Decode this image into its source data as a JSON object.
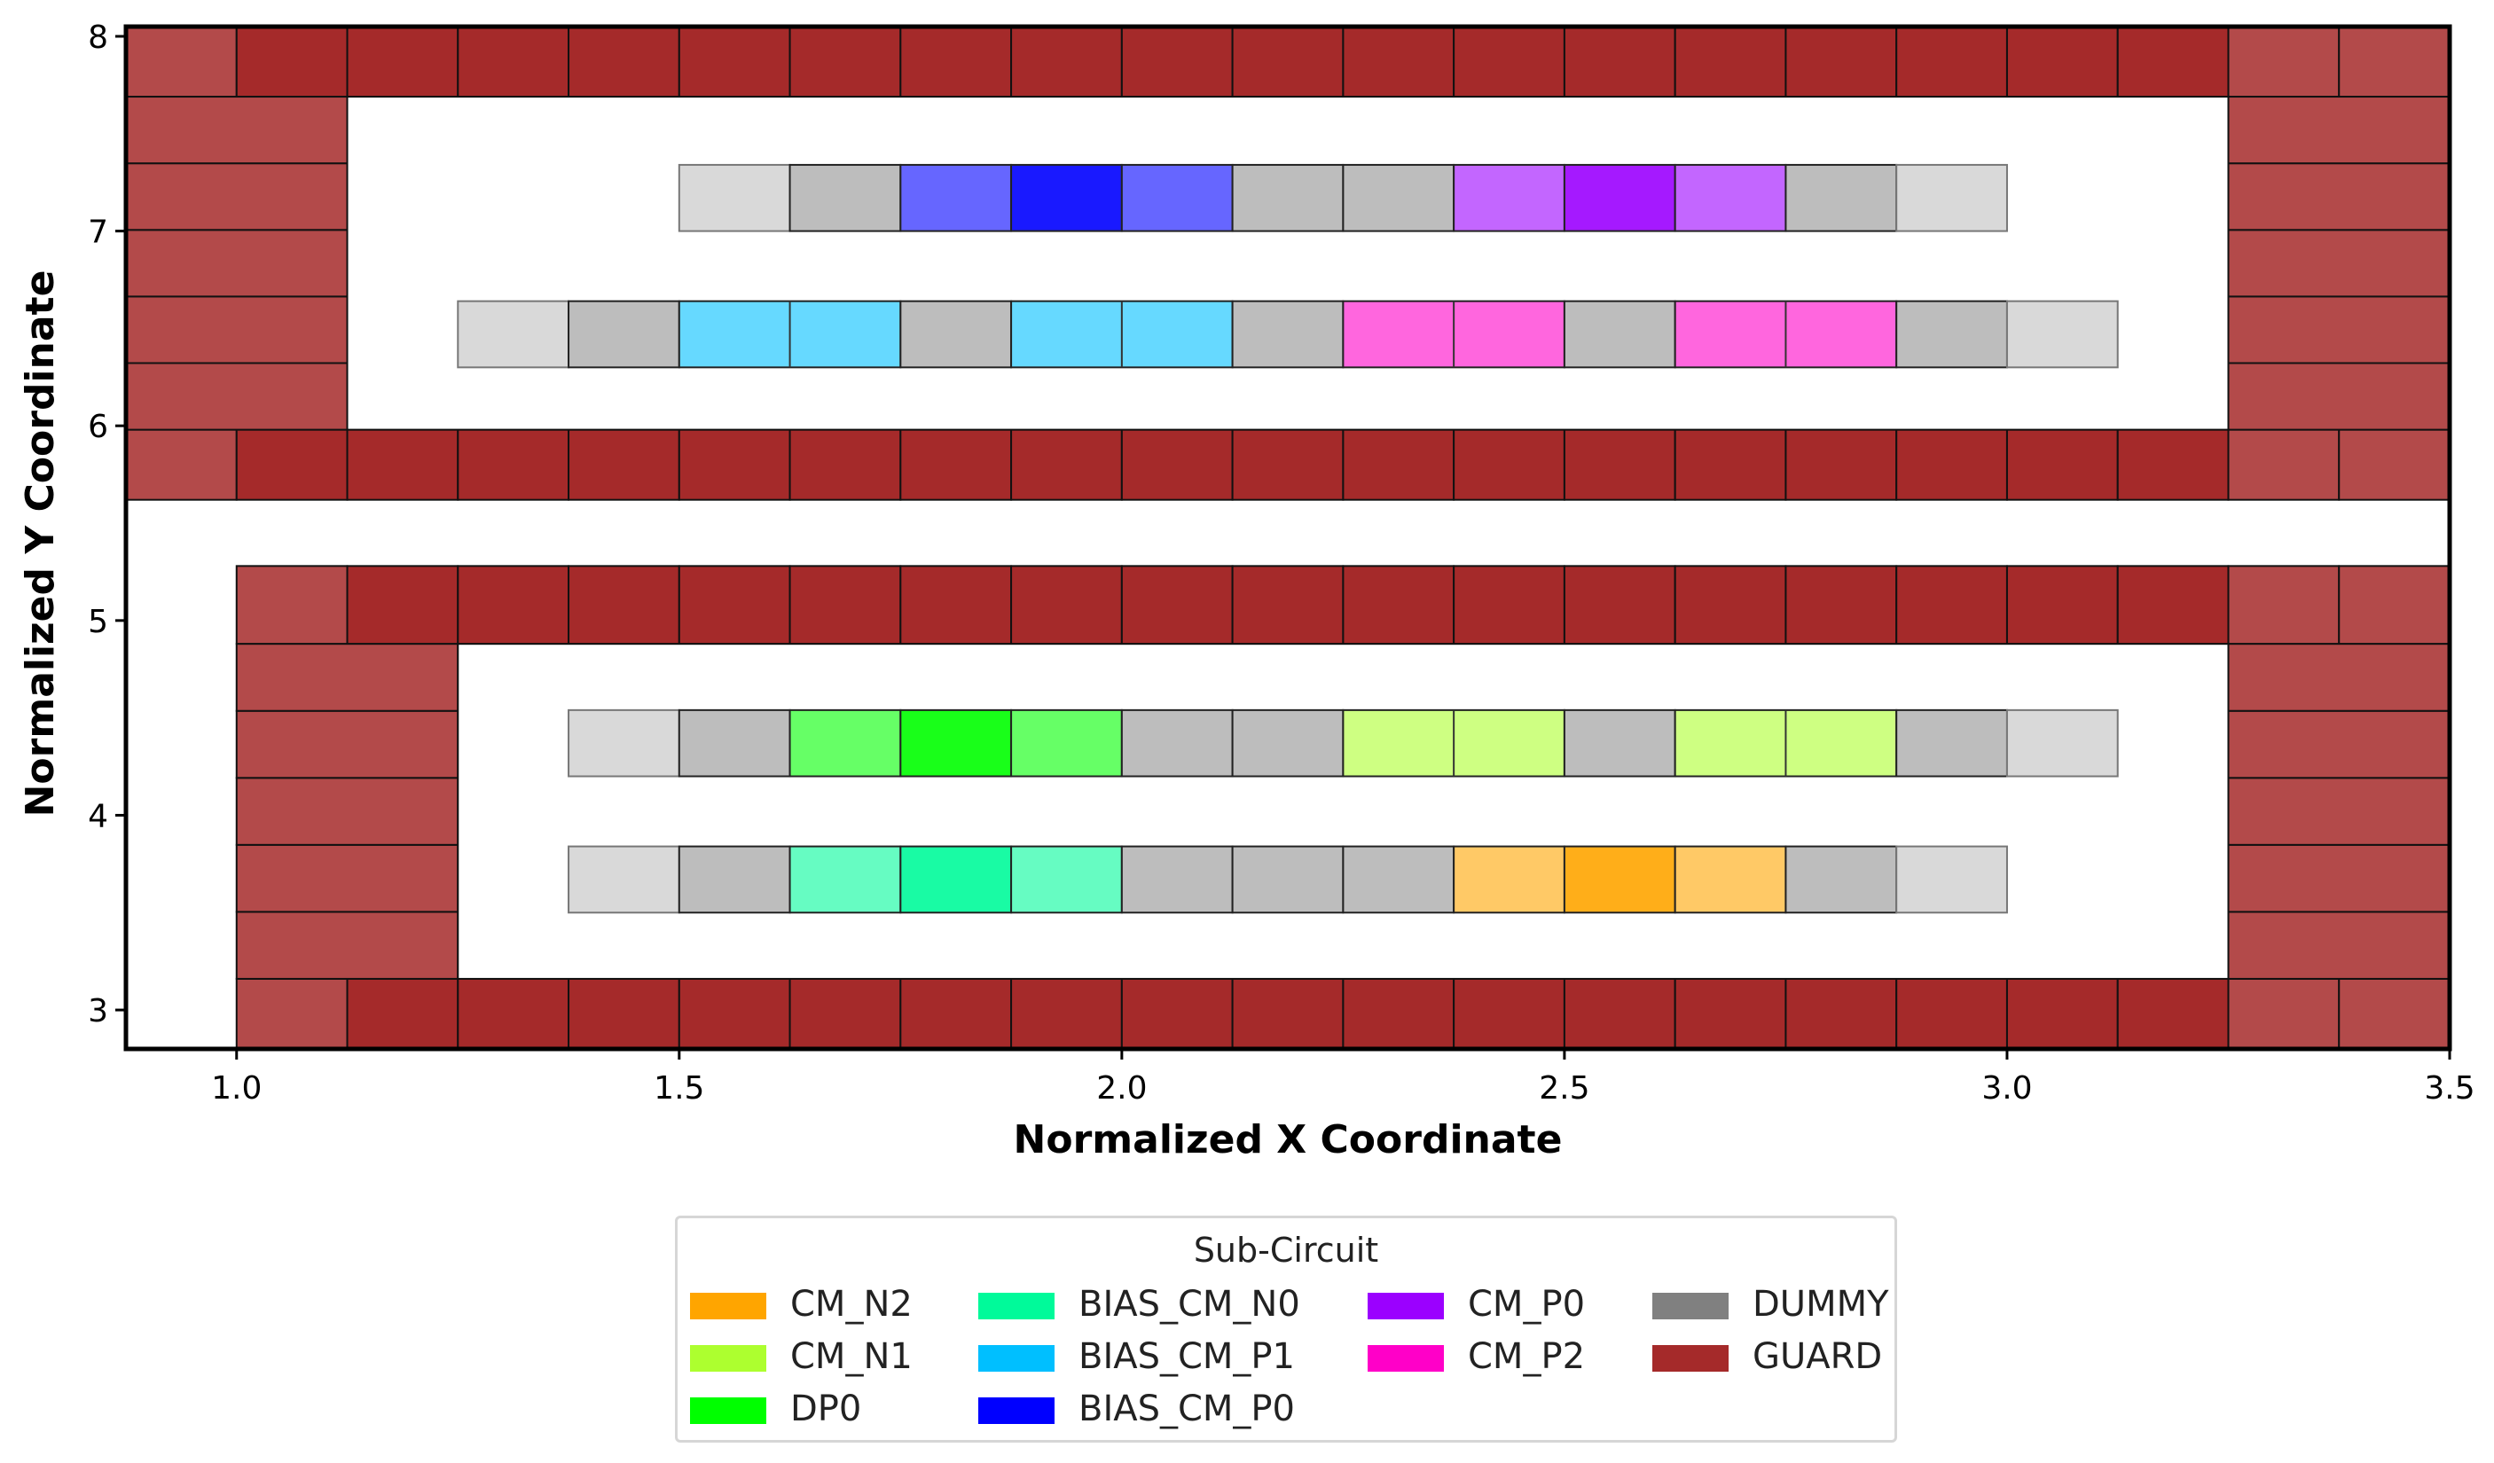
{
  "chart_data": {
    "type": "layout",
    "xlabel": "Normalized X Coordinate",
    "ylabel": "Normalized Y Coordinate",
    "xlim": [
      0.875,
      3.5
    ],
    "ylim": [
      2.8,
      8.05
    ],
    "xticks": [
      "1.0",
      "1.5",
      "2.0",
      "2.5",
      "3.0",
      "3.5"
    ],
    "yticks": [
      "3",
      "4",
      "5",
      "6",
      "7",
      "8"
    ],
    "cell_width": 0.125,
    "row_height": 0.34,
    "colors": {
      "CM_N2": "#ffa500",
      "CM_N1": "#adff2f",
      "DP0": "#00ff00",
      "BIAS_CM_N0": "#00fa9a",
      "BIAS_CM_P1": "#00bfff",
      "BIAS_CM_P0": "#0000ff",
      "CM_P0": "#9b00ff",
      "CM_P2": "#ff00c8",
      "DUMMY": "#808080",
      "GUARD": "#a52a2a"
    },
    "rows": [
      {
        "y": 7.0,
        "cells": [
          {
            "x": 1.5,
            "type": "DUMMY",
            "edge": true
          },
          {
            "x": 1.625,
            "type": "DUMMY"
          },
          {
            "x": 1.75,
            "type": "BIAS_CM_P0",
            "alpha": 0.6
          },
          {
            "x": 1.875,
            "type": "BIAS_CM_P0"
          },
          {
            "x": 2.0,
            "type": "BIAS_CM_P0",
            "alpha": 0.6
          },
          {
            "x": 2.125,
            "type": "DUMMY"
          },
          {
            "x": 2.25,
            "type": "DUMMY"
          },
          {
            "x": 2.375,
            "type": "CM_P0",
            "alpha": 0.6
          },
          {
            "x": 2.5,
            "type": "CM_P0"
          },
          {
            "x": 2.625,
            "type": "CM_P0",
            "alpha": 0.6
          },
          {
            "x": 2.75,
            "type": "DUMMY"
          },
          {
            "x": 2.875,
            "type": "DUMMY",
            "edge": true
          }
        ]
      },
      {
        "y": 6.3,
        "cells": [
          {
            "x": 1.25,
            "type": "DUMMY",
            "edge": true
          },
          {
            "x": 1.375,
            "type": "DUMMY"
          },
          {
            "x": 1.5,
            "type": "BIAS_CM_P1",
            "alpha": 0.6,
            "w": 2
          },
          {
            "x": 1.75,
            "type": "DUMMY"
          },
          {
            "x": 1.875,
            "type": "BIAS_CM_P1",
            "alpha": 0.6,
            "w": 2
          },
          {
            "x": 2.125,
            "type": "DUMMY"
          },
          {
            "x": 2.25,
            "type": "CM_P2",
            "alpha": 0.6,
            "w": 2
          },
          {
            "x": 2.5,
            "type": "DUMMY"
          },
          {
            "x": 2.625,
            "type": "CM_P2",
            "alpha": 0.6,
            "w": 2
          },
          {
            "x": 2.875,
            "type": "DUMMY"
          },
          {
            "x": 3.0,
            "type": "DUMMY",
            "edge": true
          }
        ]
      },
      {
        "y": 4.2,
        "cells": [
          {
            "x": 1.375,
            "type": "DUMMY",
            "edge": true
          },
          {
            "x": 1.5,
            "type": "DUMMY"
          },
          {
            "x": 1.625,
            "type": "DP0",
            "alpha": 0.6
          },
          {
            "x": 1.75,
            "type": "DP0"
          },
          {
            "x": 1.875,
            "type": "DP0",
            "alpha": 0.6
          },
          {
            "x": 2.0,
            "type": "DUMMY"
          },
          {
            "x": 2.125,
            "type": "DUMMY"
          },
          {
            "x": 2.25,
            "type": "CM_N1",
            "alpha": 0.6,
            "w": 2
          },
          {
            "x": 2.5,
            "type": "DUMMY"
          },
          {
            "x": 2.625,
            "type": "CM_N1",
            "alpha": 0.6,
            "w": 2
          },
          {
            "x": 2.875,
            "type": "DUMMY"
          },
          {
            "x": 3.0,
            "type": "DUMMY",
            "edge": true
          }
        ]
      },
      {
        "y": 3.5,
        "cells": [
          {
            "x": 1.375,
            "type": "DUMMY",
            "edge": true
          },
          {
            "x": 1.5,
            "type": "DUMMY"
          },
          {
            "x": 1.625,
            "type": "BIAS_CM_N0",
            "alpha": 0.6
          },
          {
            "x": 1.75,
            "type": "BIAS_CM_N0"
          },
          {
            "x": 1.875,
            "type": "BIAS_CM_N0",
            "alpha": 0.6
          },
          {
            "x": 2.0,
            "type": "DUMMY"
          },
          {
            "x": 2.125,
            "type": "DUMMY"
          },
          {
            "x": 2.25,
            "type": "DUMMY"
          },
          {
            "x": 2.375,
            "type": "CM_N2",
            "alpha": 0.6
          },
          {
            "x": 2.5,
            "type": "CM_N2"
          },
          {
            "x": 2.625,
            "type": "CM_N2",
            "alpha": 0.6
          },
          {
            "x": 2.75,
            "type": "DUMMY"
          },
          {
            "x": 2.875,
            "type": "DUMMY",
            "edge": true
          }
        ]
      }
    ],
    "guard_rings": [
      {
        "x0": 0.875,
        "x1": 3.5,
        "y0": 5.62,
        "y1": 8.05,
        "inner_x0": 1.125,
        "inner_x1": 3.25,
        "inner_y0": 5.98,
        "inner_y1": 7.69
      },
      {
        "x0": 1.0,
        "x1": 3.5,
        "y0": 2.8,
        "y1": 5.28,
        "inner_x0": 1.25,
        "inner_x1": 3.25,
        "inner_y0": 3.16,
        "inner_y1": 4.88
      }
    ],
    "legend_title": "Sub-Circuit",
    "legend": [
      {
        "label": "CM_N2",
        "color": "#ffa500"
      },
      {
        "label": "CM_N1",
        "color": "#adff2f"
      },
      {
        "label": "DP0",
        "color": "#00ff00"
      },
      {
        "label": "BIAS_CM_N0",
        "color": "#00fa9a"
      },
      {
        "label": "BIAS_CM_P1",
        "color": "#00bfff"
      },
      {
        "label": "BIAS_CM_P0",
        "color": "#0000ff"
      },
      {
        "label": "CM_P0",
        "color": "#9b00ff"
      },
      {
        "label": "CM_P2",
        "color": "#ff00c8"
      },
      {
        "label": "DUMMY",
        "color": "#808080"
      },
      {
        "label": "GUARD",
        "color": "#a52a2a"
      }
    ]
  }
}
